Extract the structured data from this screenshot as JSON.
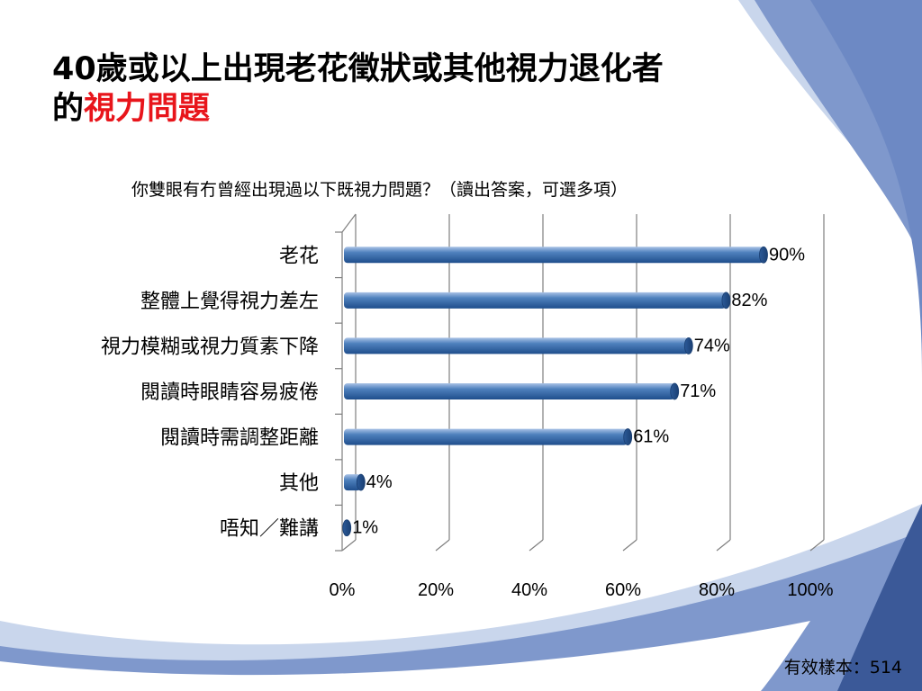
{
  "slide": {
    "title_line1": "40歲或以上出現老花徵狀或其他視力退化者",
    "title_line2_prefix": "的",
    "title_line2_highlight": "視力問題",
    "highlight_color": "#e8151b",
    "question": "你雙眼有冇曾經出現過以下既視力問題？（讀出答案，可選多項）",
    "sample_note": "有效樣本：514"
  },
  "colors": {
    "bar_fill": "#4f81bd",
    "bar_dark": "#1f4e8c",
    "decor_dark": "#3b5998",
    "decor_mid": "#6d89c4",
    "decor_light": "#c9d6ec"
  },
  "chart_data": {
    "type": "bar",
    "orientation": "horizontal",
    "categories": [
      "老花",
      "整體上覺得視力差左",
      "視力模糊或視力質素下降",
      "閱讀時眼睛容易疲倦",
      "閱讀時需調整距離",
      "其他",
      "唔知／難講"
    ],
    "values": [
      90,
      82,
      74,
      71,
      61,
      4,
      1
    ],
    "value_labels": [
      "90%",
      "82%",
      "74%",
      "71%",
      "61%",
      "4%",
      "1%"
    ],
    "xlim": [
      0,
      100
    ],
    "xticks": [
      0,
      20,
      40,
      60,
      80,
      100
    ],
    "xtick_labels": [
      "0%",
      "20%",
      "40%",
      "60%",
      "80%",
      "100%"
    ],
    "grid": true,
    "style": "3d-cylinder"
  }
}
